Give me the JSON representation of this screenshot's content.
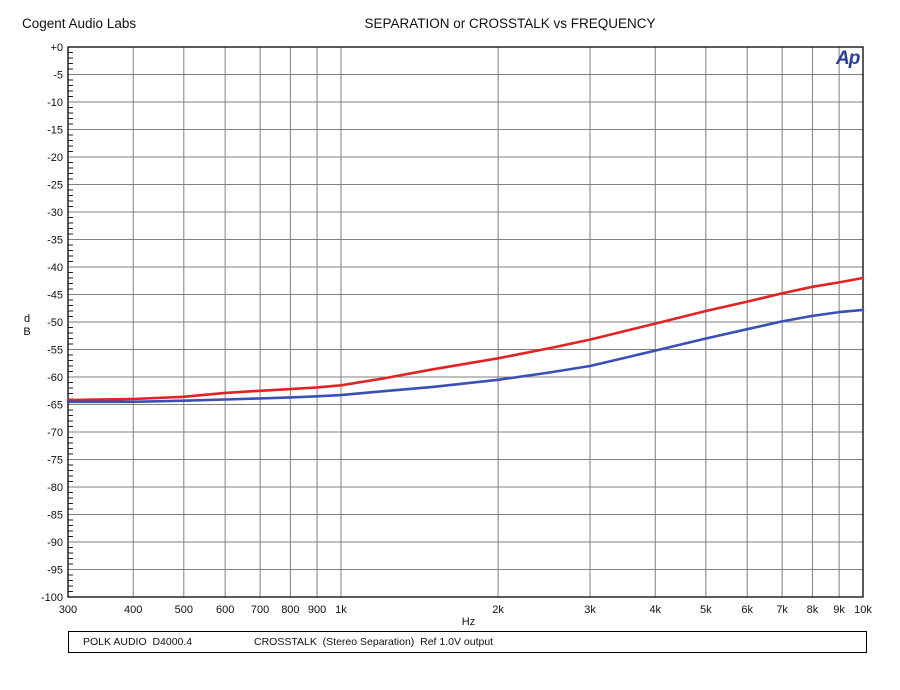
{
  "header": {
    "lab_name": "Cogent Audio Labs",
    "title": "SEPARATION or CROSSTALK vs FREQUENCY",
    "logo": "Ap"
  },
  "footer": {
    "device": "POLK AUDIO  D4000.4",
    "description": "CROSSTALK  (Stereo Separation)  Ref 1.0V output"
  },
  "chart_data": {
    "type": "line",
    "title": "SEPARATION or CROSSTALK vs FREQUENCY",
    "xlabel": "Hz",
    "ylabel": "dB",
    "x_scale": "log",
    "xlim": [
      300,
      10000
    ],
    "ylim": [
      -100,
      0
    ],
    "grid": true,
    "grid_color": "#7f7f7f",
    "border_color": "#000000",
    "x_ticks": [
      300,
      400,
      500,
      600,
      700,
      800,
      900,
      1000,
      2000,
      3000,
      4000,
      5000,
      6000,
      7000,
      8000,
      9000,
      10000
    ],
    "x_tick_labels": [
      "300",
      "400",
      "500",
      "600",
      "700",
      "800",
      "900",
      "1k",
      "2k",
      "3k",
      "4k",
      "5k",
      "6k",
      "7k",
      "8k",
      "9k",
      "10k"
    ],
    "y_ticks": [
      0,
      -5,
      -10,
      -15,
      -20,
      -25,
      -30,
      -35,
      -40,
      -45,
      -50,
      -55,
      -60,
      -65,
      -70,
      -75,
      -80,
      -85,
      -90,
      -95,
      -100
    ],
    "y_tick_labels": [
      "+0",
      "-5",
      "-10",
      "-15",
      "-20",
      "-25",
      "-30",
      "-35",
      "-40",
      "-45",
      "-50",
      "-55",
      "-60",
      "-65",
      "-70",
      "-75",
      "-80",
      "-85",
      "-90",
      "-95",
      "-100"
    ],
    "y_tick_step": 5,
    "y_minor_tick_step": 1,
    "x": [
      300,
      400,
      500,
      600,
      700,
      800,
      900,
      1000,
      1200,
      1500,
      2000,
      2500,
      3000,
      4000,
      5000,
      6000,
      7000,
      8000,
      9000,
      10000
    ],
    "series": [
      {
        "name": "crosstalk-red",
        "color": "#e02424",
        "values": [
          -64.2,
          -64.0,
          -63.6,
          -62.9,
          -62.5,
          -62.2,
          -61.9,
          -61.5,
          -60.3,
          -58.6,
          -56.6,
          -54.8,
          -53.2,
          -50.3,
          -48.0,
          -46.3,
          -44.8,
          -43.6,
          -42.8,
          -42.0
        ]
      },
      {
        "name": "crosstalk-blue",
        "color": "#3a50b4",
        "values": [
          -64.5,
          -64.5,
          -64.3,
          -64.1,
          -63.9,
          -63.7,
          -63.5,
          -63.3,
          -62.6,
          -61.8,
          -60.5,
          -59.2,
          -58.0,
          -55.2,
          -53.0,
          -51.3,
          -49.9,
          -48.9,
          -48.2,
          -47.8
        ]
      }
    ]
  }
}
